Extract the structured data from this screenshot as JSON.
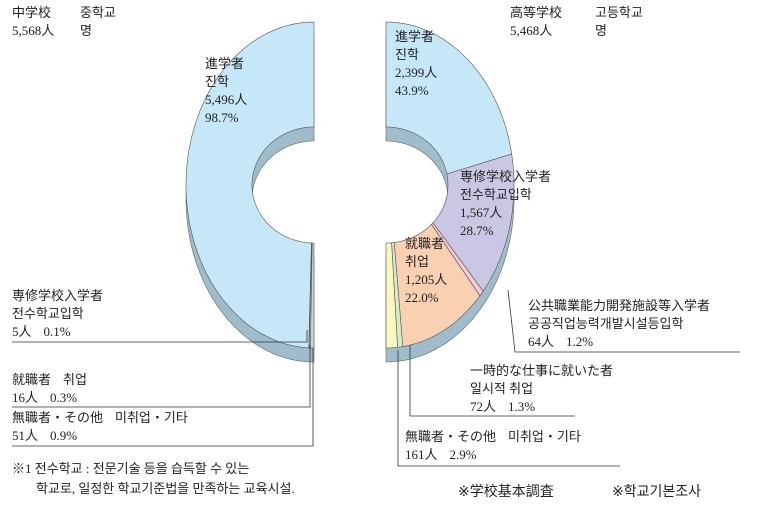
{
  "chart_data": [
    {
      "type": "half-donut",
      "side": "left",
      "title": "中学校",
      "title_ko": "중학교",
      "total": "5,568人",
      "total_ko": "명",
      "categories": [
        "進学者",
        "専修学校入学者",
        "就職者",
        "無職者・その他"
      ],
      "categories_ko": [
        "진학",
        "전수학교입학",
        "취업",
        "미취업・기타"
      ],
      "values": [
        5496,
        5,
        16,
        51
      ],
      "value_labels": [
        "5,496人",
        "5人",
        "16人",
        "51人"
      ],
      "percents": [
        98.7,
        0.1,
        0.3,
        0.9
      ],
      "percent_labels": [
        "98.7%",
        "0.1%",
        "0.3%",
        "0.9%"
      ],
      "colors": [
        "#c6e7f8",
        "#f6c8d0",
        "#dcecc6",
        "#c9d3da"
      ]
    },
    {
      "type": "half-donut",
      "side": "right",
      "title": "高等学校",
      "title_ko": "고등학교",
      "total": "5,468人",
      "total_ko": "명",
      "categories": [
        "進学者",
        "専修学校入学者",
        "公共職業能力開発施設等入学者",
        "就職者",
        "一時的な仕事に就いた者",
        "無職者・その他"
      ],
      "categories_ko": [
        "진학",
        "전수학교입학",
        "공공직업능력개발시설등입학",
        "취업",
        "일시적 취업",
        "미취업・기타"
      ],
      "values": [
        2399,
        1567,
        64,
        1205,
        72,
        161
      ],
      "value_labels": [
        "2,399人",
        "1,567人",
        "64人",
        "1,205人",
        "72人",
        "161人"
      ],
      "percents": [
        43.9,
        28.7,
        1.2,
        22.0,
        1.3,
        2.9
      ],
      "percent_labels": [
        "43.9%",
        "28.7%",
        "1.2%",
        "22.0%",
        "1.3%",
        "2.9%"
      ],
      "colors": [
        "#c6e7f8",
        "#cac7e5",
        "#f6c8d0",
        "#f9d0b2",
        "#d8ecc6",
        "#fbf6c0"
      ]
    }
  ],
  "footnote": [
    "※1 전수학교 : 전문기술 등을 습득할 수 있는",
    "학교로, 일정한 학교기준법을 만족하는 교육시설."
  ],
  "source": [
    "※学校基本調査",
    "※학교기본조사"
  ]
}
